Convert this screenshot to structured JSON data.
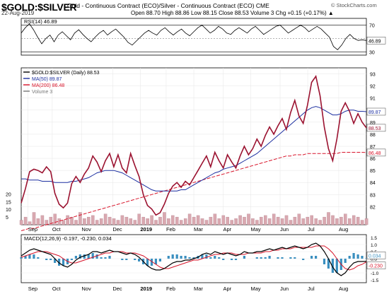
{
  "header": {
    "symbol": "$GOLD:$SILVER",
    "description": "Gold - Continuous Contract (ECO)/Silver - Continuous Contract (ECO) CME",
    "date": "22-Aug-2019",
    "ohlc": "Open 88.70  High 88.86  Low 88.15  Close 88.53  Volume 3  Chg +0.15 (+0.17%) ▲",
    "credit": "© StockCharts.com"
  },
  "chart_data": [
    {
      "type": "line",
      "panel": "rsi",
      "legend": "RSI(14) 46.89",
      "ylim": [
        25,
        80
      ],
      "ticks": [
        30,
        50,
        70
      ],
      "tick_labels": [
        "30",
        "50",
        "70"
      ],
      "reference_lines": [
        30,
        70
      ],
      "last_value_tag": "46.89",
      "values": [
        58,
        66,
        72,
        63,
        52,
        42,
        50,
        55,
        45,
        55,
        60,
        54,
        48,
        58,
        63,
        56,
        50,
        45,
        52,
        58,
        62,
        55,
        60,
        64,
        58,
        52,
        44,
        40,
        46,
        52,
        58,
        62,
        58,
        55,
        62,
        66,
        60,
        55,
        60,
        64,
        58,
        54,
        60,
        66,
        70,
        64,
        58,
        62,
        68,
        64,
        58,
        56,
        62,
        66,
        62,
        58,
        64,
        68,
        62,
        56,
        60,
        64,
        68,
        70,
        64,
        58,
        62,
        66,
        70,
        66,
        60,
        64,
        68,
        64,
        58,
        52,
        38,
        33,
        40,
        50,
        56,
        50,
        47,
        48,
        46.89
      ]
    },
    {
      "type": "line",
      "panel": "price",
      "legend": [
        "$GOLD:$SILVER (Daily) 88.53",
        "MA(50) 89.87",
        "MA(200) 86.48",
        "Volume 3"
      ],
      "colors": {
        "price": "#9b1230",
        "ma50": "#1c2fa0",
        "ma200": "#d8142a",
        "volume": "#d9a8b0"
      },
      "ylim": [
        80.5,
        93.5
      ],
      "y_ticks": [
        82,
        83,
        84,
        85,
        86,
        87,
        88,
        89,
        90,
        91,
        92,
        93
      ],
      "y_tick_labels": [
        "82",
        "83",
        "84",
        "85",
        "86",
        "87",
        "88",
        "89",
        "90",
        "91",
        "92",
        "93"
      ],
      "x_labels": [
        "Sep",
        "Oct",
        "Nov",
        "Dec",
        "2019",
        "Feb",
        "Mar",
        "Apr",
        "May",
        "Jun",
        "Jul",
        "Aug"
      ],
      "last_value_tags": {
        "ma50": "89.87",
        "close": "88.53",
        "ma200": "86.48"
      },
      "volume_axis_ticks": [
        5,
        10,
        15,
        20
      ],
      "volume_axis_labels": [
        "5",
        "10",
        "15",
        "20"
      ],
      "close": [
        82.3,
        83.5,
        84.9,
        85.1,
        85.0,
        84.8,
        85.3,
        84.9,
        83.1,
        82.2,
        81.9,
        82.3,
        83.9,
        84.5,
        84.0,
        84.7,
        85.2,
        86.2,
        85.7,
        84.9,
        85.8,
        86.4,
        85.3,
        86.3,
        85.2,
        84.8,
        86.4,
        85.4,
        84.5,
        83.0,
        82.1,
        81.8,
        81.3,
        81.5,
        82.2,
        83.1,
        83.7,
        84.0,
        83.6,
        84.1,
        83.8,
        84.4,
        85.0,
        85.6,
        86.2,
        85.3,
        86.5,
        85.8,
        85.2,
        86.3,
        85.7,
        85.2,
        86.2,
        87.0,
        86.3,
        86.8,
        87.6,
        87.0,
        87.9,
        88.6,
        88.0,
        88.7,
        89.3,
        88.4,
        89.8,
        90.8,
        89.5,
        88.9,
        90.4,
        92.3,
        92.8,
        91.2,
        88.6,
        86.8,
        85.8,
        87.6,
        89.9,
        90.6,
        89.9,
        88.9,
        89.7,
        89.0,
        88.53
      ],
      "ma50": [
        84.3,
        84.3,
        84.2,
        84.2,
        84.2,
        84.1,
        84.1,
        84.1,
        84.0,
        84.0,
        84.0,
        84.0,
        84.1,
        84.1,
        84.2,
        84.3,
        84.4,
        84.6,
        84.8,
        84.9,
        85.0,
        85.0,
        85.0,
        84.9,
        84.8,
        84.6,
        84.4,
        84.2,
        84.0,
        83.8,
        83.6,
        83.4,
        83.3,
        83.3,
        83.3,
        83.3,
        83.3,
        83.3,
        83.4,
        83.4,
        83.6,
        83.8,
        84.0,
        84.2,
        84.4,
        84.6,
        84.8,
        84.9,
        85.1,
        85.2,
        85.3,
        85.4,
        85.6,
        85.8,
        86.0,
        86.2,
        86.4,
        86.7,
        87.0,
        87.3,
        87.6,
        87.9,
        88.2,
        88.5,
        88.8,
        89.1,
        89.4,
        89.7,
        90.0,
        90.2,
        90.3,
        90.2,
        90.0,
        89.8,
        89.6,
        89.6,
        89.7,
        89.9,
        90.0,
        90.0,
        89.9,
        89.9,
        89.87
      ],
      "ma200": [
        80.0,
        80.1,
        80.2,
        80.2,
        80.3,
        80.4,
        80.5,
        80.6,
        80.7,
        80.8,
        80.9,
        81.0,
        81.1,
        81.2,
        81.3,
        81.4,
        81.5,
        81.6,
        81.7,
        81.8,
        81.9,
        82.0,
        82.1,
        82.2,
        82.3,
        82.4,
        82.5,
        82.6,
        82.7,
        82.8,
        82.9,
        83.0,
        83.1,
        83.2,
        83.3,
        83.4,
        83.5,
        83.6,
        83.7,
        83.8,
        83.9,
        84.0,
        84.1,
        84.2,
        84.3,
        84.4,
        84.5,
        84.6,
        84.7,
        84.8,
        84.9,
        85.0,
        85.1,
        85.2,
        85.3,
        85.4,
        85.5,
        85.6,
        85.7,
        85.8,
        85.9,
        86.0,
        86.1,
        86.2,
        86.2,
        86.3,
        86.3,
        86.3,
        86.4,
        86.4,
        86.4,
        86.4,
        86.4,
        86.4,
        86.4,
        86.4,
        86.5,
        86.5,
        86.5,
        86.5,
        86.5,
        86.5,
        86.48
      ],
      "volume": [
        3,
        5,
        2,
        8,
        4,
        6,
        3,
        5,
        7,
        4,
        3,
        6,
        5,
        3,
        8,
        4,
        5,
        6,
        3,
        4,
        7,
        5,
        4,
        3,
        6,
        5,
        4,
        3,
        7,
        5,
        4,
        6,
        3,
        5,
        8,
        4,
        6,
        5,
        3,
        4,
        7,
        5,
        6,
        4,
        3,
        5,
        7,
        4,
        6,
        5,
        3,
        4,
        6,
        5,
        7,
        4,
        3,
        5,
        6,
        4,
        7,
        5,
        4,
        6,
        3,
        5,
        7,
        4,
        5,
        6,
        4,
        3,
        5,
        8,
        6,
        4,
        5,
        7,
        4,
        6,
        5,
        3,
        4
      ]
    },
    {
      "type": "line",
      "panel": "macd",
      "legend": [
        "MACD(12,26,9) -0.197, -0.230, 0.034"
      ],
      "colors": {
        "macd": "#000000",
        "signal": "#d8142a",
        "histogram": "#3a8fbf"
      },
      "ylim": [
        -1.7,
        1.7
      ],
      "y_ticks": [
        -1.5,
        -1.0,
        -0.5,
        0.0,
        0.5,
        1.0,
        1.5
      ],
      "y_tick_labels": [
        "-1.5",
        "-1.0",
        "-0.5",
        "0.0",
        "0.5",
        "1.0",
        "1.5"
      ],
      "last_value_tags": [
        "0.034",
        "-0.230"
      ],
      "x_labels": [
        "Sep",
        "Oct",
        "Nov",
        "Dec",
        "2019",
        "Feb",
        "Mar",
        "Apr",
        "May",
        "Jun",
        "Jul",
        "Aug"
      ],
      "macd": [
        0.2,
        0.4,
        0.6,
        0.7,
        0.6,
        0.5,
        0.4,
        0.3,
        0.0,
        -0.3,
        -0.5,
        -0.6,
        -0.4,
        -0.1,
        0.1,
        0.2,
        0.3,
        0.5,
        0.5,
        0.4,
        0.5,
        0.6,
        0.5,
        0.5,
        0.4,
        0.3,
        0.4,
        0.3,
        0.1,
        -0.2,
        -0.5,
        -0.7,
        -0.8,
        -0.8,
        -0.7,
        -0.5,
        -0.3,
        -0.2,
        -0.2,
        -0.1,
        -0.1,
        0.0,
        0.1,
        0.3,
        0.4,
        0.3,
        0.5,
        0.4,
        0.3,
        0.4,
        0.3,
        0.2,
        0.3,
        0.5,
        0.4,
        0.4,
        0.5,
        0.5,
        0.6,
        0.7,
        0.6,
        0.7,
        0.8,
        0.7,
        0.8,
        0.9,
        0.8,
        0.7,
        0.8,
        1.0,
        1.1,
        0.9,
        0.5,
        0.0,
        -0.6,
        -1.0,
        -1.2,
        -1.0,
        -0.6,
        -0.3,
        -0.2,
        -0.2,
        -0.197
      ],
      "signal": [
        0.1,
        0.2,
        0.3,
        0.4,
        0.5,
        0.5,
        0.5,
        0.4,
        0.3,
        0.2,
        0.0,
        -0.2,
        -0.3,
        -0.3,
        -0.2,
        -0.1,
        0.0,
        0.1,
        0.2,
        0.3,
        0.4,
        0.4,
        0.5,
        0.5,
        0.5,
        0.4,
        0.4,
        0.4,
        0.3,
        0.2,
        0.0,
        -0.2,
        -0.4,
        -0.6,
        -0.7,
        -0.7,
        -0.6,
        -0.5,
        -0.4,
        -0.3,
        -0.2,
        -0.1,
        -0.1,
        0.0,
        0.1,
        0.2,
        0.3,
        0.3,
        0.4,
        0.4,
        0.4,
        0.3,
        0.3,
        0.3,
        0.4,
        0.4,
        0.4,
        0.4,
        0.5,
        0.5,
        0.6,
        0.6,
        0.7,
        0.7,
        0.7,
        0.8,
        0.8,
        0.8,
        0.8,
        0.8,
        0.9,
        0.9,
        0.9,
        0.7,
        0.4,
        0.0,
        -0.4,
        -0.7,
        -0.8,
        -0.7,
        -0.5,
        -0.4,
        -0.23
      ]
    }
  ]
}
